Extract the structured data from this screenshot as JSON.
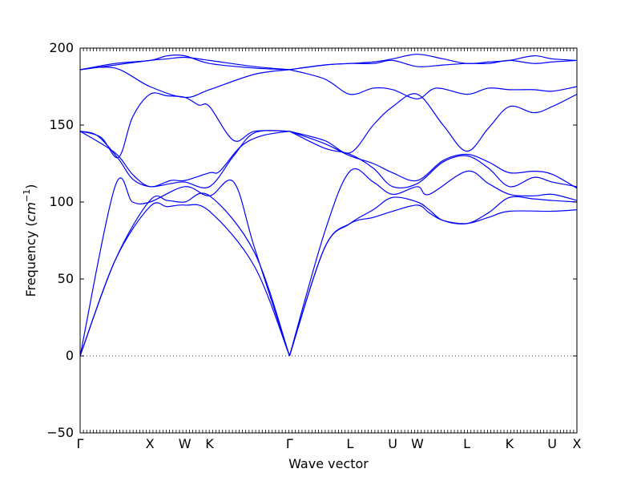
{
  "chart_data": {
    "type": "line",
    "xlabel": "Wave vector",
    "ylabel": "Frequency",
    "ylabel_unit": "cm",
    "ylabel_exp": "−1",
    "ylim": [
      -50,
      200
    ],
    "y_ticks": [
      -50,
      0,
      50,
      100,
      150,
      200
    ],
    "y_tick_labels": [
      "−50",
      "0",
      "50",
      "100",
      "150",
      "200"
    ],
    "x_tick_labels": [
      "Γ",
      "X",
      "W",
      "K",
      "Γ",
      "L",
      "U",
      "W",
      "L",
      "K",
      "U",
      "X"
    ],
    "x_tick_positions": [
      0,
      1.0,
      1.5,
      1.854,
      3.0,
      3.866,
      4.478,
      4.832,
      5.539,
      6.151,
      6.763,
      7.117
    ],
    "zero_line": true,
    "grid": false,
    "line_color": "#0000ff",
    "series": [
      {
        "points": [
          [
            0,
            0
          ],
          [
            0.5,
            110
          ],
          [
            0.75,
            100
          ],
          [
            1.0,
            100
          ],
          [
            1.5,
            110
          ],
          [
            1.854,
            104
          ],
          [
            2.2,
            113
          ],
          [
            2.5,
            70
          ],
          [
            3.0,
            0
          ]
        ]
      },
      {
        "points": [
          [
            0,
            0
          ],
          [
            0.5,
            62
          ],
          [
            1.0,
            97
          ],
          [
            1.25,
            97
          ],
          [
            1.5,
            98
          ],
          [
            1.854,
            94
          ],
          [
            2.5,
            58
          ],
          [
            3.0,
            0
          ]
        ]
      },
      {
        "points": [
          [
            0,
            0
          ],
          [
            0.5,
            62
          ],
          [
            1.0,
            101
          ],
          [
            1.25,
            101
          ],
          [
            1.5,
            100
          ],
          [
            1.854,
            104
          ],
          [
            2.5,
            67
          ],
          [
            3.0,
            0
          ]
        ]
      },
      {
        "points": [
          [
            0,
            146
          ],
          [
            0.25,
            143
          ],
          [
            0.55,
            128
          ],
          [
            0.75,
            115
          ],
          [
            1.0,
            110
          ],
          [
            1.3,
            112
          ],
          [
            1.5,
            113
          ],
          [
            1.854,
            110
          ],
          [
            2.2,
            130
          ],
          [
            2.5,
            145
          ],
          [
            3.0,
            146
          ]
        ]
      },
      {
        "points": [
          [
            0,
            146
          ],
          [
            0.5,
            132
          ],
          [
            0.75,
            118
          ],
          [
            1.0,
            110
          ],
          [
            1.3,
            114
          ],
          [
            1.5,
            114
          ],
          [
            1.854,
            119
          ],
          [
            2.0,
            120
          ],
          [
            2.3,
            136
          ],
          [
            2.6,
            143
          ],
          [
            3.0,
            146
          ]
        ]
      },
      {
        "points": [
          [
            0,
            146
          ],
          [
            0.3,
            142
          ],
          [
            0.55,
            129
          ],
          [
            0.75,
            155
          ],
          [
            1.0,
            170
          ],
          [
            1.25,
            169
          ],
          [
            1.5,
            168
          ],
          [
            1.7,
            163
          ],
          [
            1.854,
            162
          ],
          [
            2.2,
            140
          ],
          [
            2.5,
            146
          ],
          [
            3.0,
            146
          ]
        ]
      },
      {
        "points": [
          [
            0,
            186
          ],
          [
            0.5,
            187
          ],
          [
            1.0,
            175
          ],
          [
            1.5,
            168
          ],
          [
            1.854,
            173
          ],
          [
            2.5,
            183
          ],
          [
            3.0,
            186
          ]
        ]
      },
      {
        "points": [
          [
            0,
            186
          ],
          [
            0.5,
            189
          ],
          [
            1.0,
            192
          ],
          [
            1.25,
            193
          ],
          [
            1.5,
            194
          ],
          [
            1.854,
            192
          ],
          [
            2.5,
            188
          ],
          [
            3.0,
            186
          ]
        ]
      },
      {
        "points": [
          [
            0,
            186
          ],
          [
            0.5,
            190
          ],
          [
            1.0,
            192
          ],
          [
            1.25,
            195
          ],
          [
            1.5,
            195
          ],
          [
            1.854,
            190
          ],
          [
            2.5,
            187
          ],
          [
            3.0,
            186
          ]
        ]
      },
      {
        "points": [
          [
            3.0,
            0
          ],
          [
            3.5,
            70
          ],
          [
            3.866,
            86
          ],
          [
            4.2,
            90
          ],
          [
            4.478,
            94
          ],
          [
            4.832,
            98
          ],
          [
            5.0,
            93
          ],
          [
            5.2,
            88
          ],
          [
            5.539,
            86
          ],
          [
            5.85,
            90
          ],
          [
            6.151,
            94
          ],
          [
            6.763,
            94
          ],
          [
            7.117,
            95
          ]
        ]
      },
      {
        "points": [
          [
            3.0,
            0
          ],
          [
            3.5,
            70
          ],
          [
            3.866,
            86
          ],
          [
            4.2,
            95
          ],
          [
            4.478,
            103
          ],
          [
            4.832,
            100
          ],
          [
            5.0,
            95
          ],
          [
            5.2,
            88
          ],
          [
            5.539,
            86
          ],
          [
            5.85,
            93
          ],
          [
            6.151,
            103
          ],
          [
            6.5,
            102
          ],
          [
            6.763,
            101
          ],
          [
            7.117,
            100
          ]
        ]
      },
      {
        "points": [
          [
            3.0,
            0
          ],
          [
            3.5,
            80
          ],
          [
            3.866,
            120
          ],
          [
            4.2,
            113
          ],
          [
            4.478,
            105
          ],
          [
            4.832,
            110
          ],
          [
            5.0,
            105
          ],
          [
            5.539,
            120
          ],
          [
            5.85,
            112
          ],
          [
            6.151,
            105
          ],
          [
            6.5,
            104
          ],
          [
            6.763,
            105
          ],
          [
            7.117,
            101
          ]
        ]
      },
      {
        "points": [
          [
            3.0,
            146
          ],
          [
            3.5,
            135
          ],
          [
            3.866,
            131
          ],
          [
            4.2,
            122
          ],
          [
            4.478,
            110
          ],
          [
            4.832,
            112
          ],
          [
            5.2,
            126
          ],
          [
            5.539,
            130
          ],
          [
            5.85,
            122
          ],
          [
            6.151,
            110
          ],
          [
            6.5,
            116
          ],
          [
            6.763,
            113
          ],
          [
            7.117,
            110
          ]
        ]
      },
      {
        "points": [
          [
            3.0,
            146
          ],
          [
            3.5,
            138
          ],
          [
            3.866,
            130
          ],
          [
            4.2,
            125
          ],
          [
            4.478,
            119
          ],
          [
            4.832,
            114
          ],
          [
            5.2,
            127
          ],
          [
            5.539,
            131
          ],
          [
            5.85,
            126
          ],
          [
            6.151,
            119
          ],
          [
            6.5,
            120
          ],
          [
            6.763,
            118
          ],
          [
            7.117,
            109
          ]
        ]
      },
      {
        "points": [
          [
            3.0,
            146
          ],
          [
            3.5,
            140
          ],
          [
            3.866,
            132
          ],
          [
            4.2,
            150
          ],
          [
            4.478,
            162
          ],
          [
            4.832,
            170
          ],
          [
            5.2,
            150
          ],
          [
            5.539,
            133
          ],
          [
            5.85,
            148
          ],
          [
            6.151,
            162
          ],
          [
            6.5,
            158
          ],
          [
            6.763,
            162
          ],
          [
            7.117,
            170
          ]
        ]
      },
      {
        "points": [
          [
            3.0,
            186
          ],
          [
            3.5,
            180
          ],
          [
            3.866,
            170
          ],
          [
            4.2,
            174
          ],
          [
            4.478,
            173
          ],
          [
            4.832,
            167
          ],
          [
            5.1,
            174
          ],
          [
            5.539,
            170
          ],
          [
            5.85,
            174
          ],
          [
            6.151,
            173
          ],
          [
            6.5,
            173
          ],
          [
            6.763,
            172
          ],
          [
            7.117,
            175
          ]
        ]
      },
      {
        "points": [
          [
            3.0,
            186
          ],
          [
            3.5,
            189
          ],
          [
            3.866,
            190
          ],
          [
            4.2,
            191
          ],
          [
            4.478,
            193
          ],
          [
            4.832,
            196
          ],
          [
            5.2,
            193
          ],
          [
            5.539,
            190
          ],
          [
            5.85,
            191
          ],
          [
            6.151,
            192
          ],
          [
            6.5,
            195
          ],
          [
            6.763,
            193
          ],
          [
            7.117,
            192
          ]
        ]
      },
      {
        "points": [
          [
            3.0,
            186
          ],
          [
            3.5,
            189
          ],
          [
            3.866,
            190
          ],
          [
            4.2,
            190
          ],
          [
            4.478,
            192
          ],
          [
            4.832,
            188
          ],
          [
            5.2,
            189
          ],
          [
            5.539,
            190
          ],
          [
            5.85,
            190
          ],
          [
            6.151,
            192
          ],
          [
            6.5,
            190
          ],
          [
            6.763,
            191
          ],
          [
            7.117,
            192
          ]
        ]
      }
    ]
  }
}
